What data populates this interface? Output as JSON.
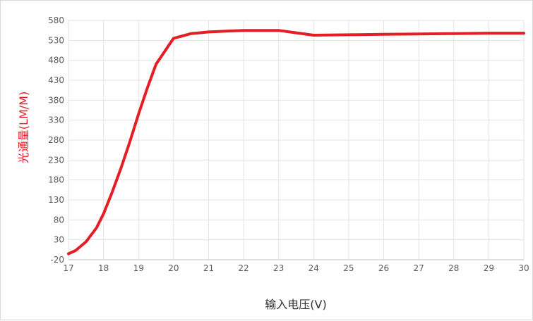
{
  "chart_data": {
    "type": "line",
    "title": "",
    "xlabel": "输入电压(V)",
    "ylabel": "光通量(LM/M)",
    "xlim": [
      17,
      30
    ],
    "ylim": [
      -20,
      580
    ],
    "x_ticks": [
      17,
      18,
      19,
      20,
      21,
      22,
      23,
      24,
      25,
      26,
      27,
      28,
      29,
      30
    ],
    "y_ticks": [
      -20,
      30,
      80,
      130,
      180,
      230,
      280,
      330,
      380,
      430,
      480,
      530,
      580
    ],
    "grid": true,
    "legend": "none",
    "series": [
      {
        "color": "#e31e24",
        "x": [
          17,
          17.2,
          17.5,
          17.8,
          18,
          18.25,
          18.5,
          18.75,
          19,
          19.25,
          19.5,
          20,
          20.5,
          21,
          21.5,
          22,
          22.5,
          23,
          23.5,
          24,
          25,
          26,
          27,
          28,
          29,
          30
        ],
        "y": [
          -5,
          3,
          25,
          60,
          95,
          150,
          210,
          275,
          345,
          410,
          470,
          535,
          547,
          551,
          553,
          555,
          555,
          555,
          549,
          543,
          544,
          545,
          546,
          547,
          548,
          548
        ]
      }
    ]
  },
  "colors": {
    "ylabel": "#e31e24",
    "xlabel": "#333333",
    "grid": "#e3e3e3",
    "axis": "#bfbfbf"
  }
}
